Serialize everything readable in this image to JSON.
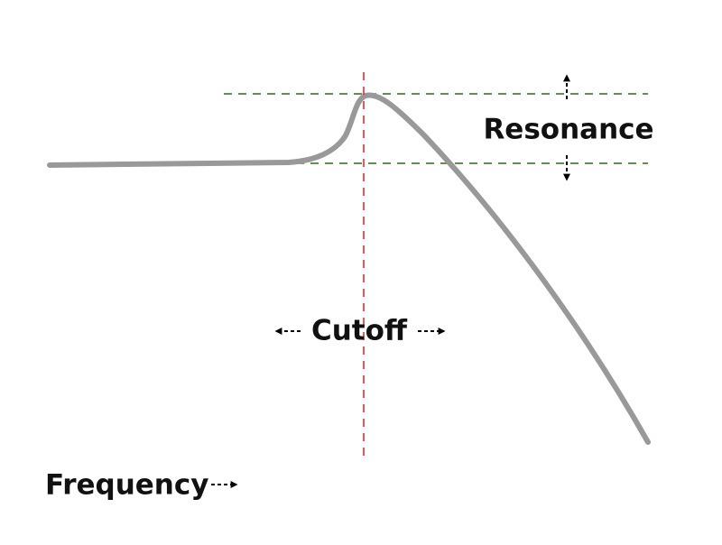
{
  "labels": {
    "resonance": "Resonance",
    "cutoff": "Cutoff",
    "frequency": "Frequency"
  }
}
